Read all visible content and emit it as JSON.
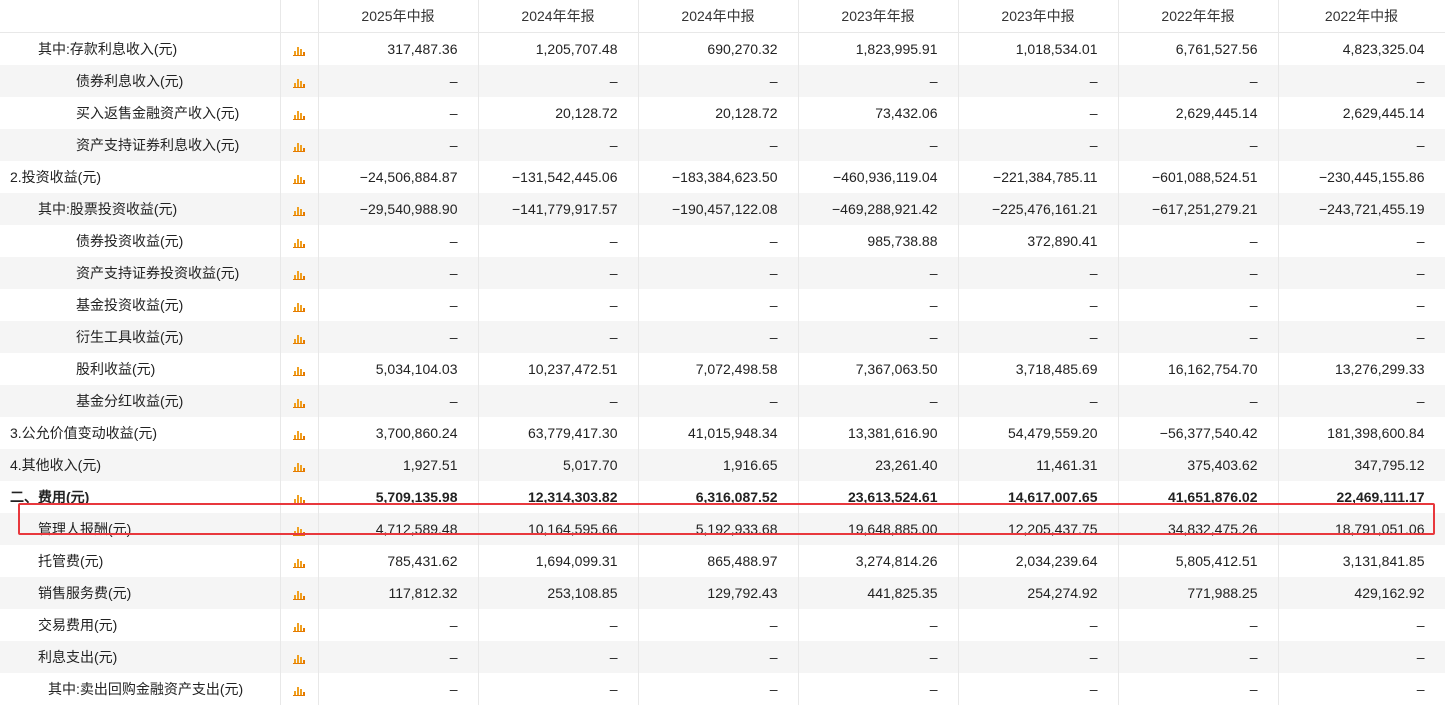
{
  "headers": [
    "2025年中报",
    "2024年年报",
    "2024年中报",
    "2023年年报",
    "2023年中报",
    "2022年年报",
    "2022年中报"
  ],
  "rows": [
    {
      "label": "其中:存款利息收入(元)",
      "values": [
        "317,487.36",
        "1,205,707.48",
        "690,270.32",
        "1,823,995.91",
        "1,018,534.01",
        "6,761,527.56",
        "4,823,325.04"
      ]
    },
    {
      "label": "债券利息收入(元)",
      "values": [
        "–",
        "–",
        "–",
        "–",
        "–",
        "–",
        "–"
      ]
    },
    {
      "label": "买入返售金融资产收入(元)",
      "values": [
        "–",
        "20,128.72",
        "20,128.72",
        "73,432.06",
        "–",
        "2,629,445.14",
        "2,629,445.14"
      ]
    },
    {
      "label": "资产支持证券利息收入(元)",
      "values": [
        "–",
        "–",
        "–",
        "–",
        "–",
        "–",
        "–"
      ]
    },
    {
      "label": "2.投资收益(元)",
      "values": [
        "−24,506,884.87",
        "−131,542,445.06",
        "−183,384,623.50",
        "−460,936,119.04",
        "−221,384,785.11",
        "−601,088,524.51",
        "−230,445,155.86"
      ]
    },
    {
      "label": "其中:股票投资收益(元)",
      "values": [
        "−29,540,988.90",
        "−141,779,917.57",
        "−190,457,122.08",
        "−469,288,921.42",
        "−225,476,161.21",
        "−617,251,279.21",
        "−243,721,455.19"
      ]
    },
    {
      "label": "债券投资收益(元)",
      "values": [
        "–",
        "–",
        "–",
        "985,738.88",
        "372,890.41",
        "–",
        "–"
      ]
    },
    {
      "label": "资产支持证券投资收益(元)",
      "values": [
        "–",
        "–",
        "–",
        "–",
        "–",
        "–",
        "–"
      ]
    },
    {
      "label": "基金投资收益(元)",
      "values": [
        "–",
        "–",
        "–",
        "–",
        "–",
        "–",
        "–"
      ]
    },
    {
      "label": "衍生工具收益(元)",
      "values": [
        "–",
        "–",
        "–",
        "–",
        "–",
        "–",
        "–"
      ]
    },
    {
      "label": "股利收益(元)",
      "values": [
        "5,034,104.03",
        "10,237,472.51",
        "7,072,498.58",
        "7,367,063.50",
        "3,718,485.69",
        "16,162,754.70",
        "13,276,299.33"
      ]
    },
    {
      "label": "基金分红收益(元)",
      "values": [
        "–",
        "–",
        "–",
        "–",
        "–",
        "–",
        "–"
      ]
    },
    {
      "label": "3.公允价值变动收益(元)",
      "values": [
        "3,700,860.24",
        "63,779,417.30",
        "41,015,948.34",
        "13,381,616.90",
        "54,479,559.20",
        "−56,377,540.42",
        "181,398,600.84"
      ]
    },
    {
      "label": "4.其他收入(元)",
      "values": [
        "1,927.51",
        "5,017.70",
        "1,916.65",
        "23,261.40",
        "11,461.31",
        "375,403.62",
        "347,795.12"
      ]
    },
    {
      "label": "二、费用(元)",
      "values": [
        "5,709,135.98",
        "12,314,303.82",
        "6,316,087.52",
        "23,613,524.61",
        "14,617,007.65",
        "41,651,876.02",
        "22,469,111.17"
      ]
    },
    {
      "label": "管理人报酬(元)",
      "values": [
        "4,712,589.48",
        "10,164,595.66",
        "5,192,933.68",
        "19,648,885.00",
        "12,205,437.75",
        "34,832,475.26",
        "18,791,051.06"
      ]
    },
    {
      "label": "托管费(元)",
      "values": [
        "785,431.62",
        "1,694,099.31",
        "865,488.97",
        "3,274,814.26",
        "2,034,239.64",
        "5,805,412.51",
        "3,131,841.85"
      ]
    },
    {
      "label": "销售服务费(元)",
      "values": [
        "117,812.32",
        "253,108.85",
        "129,792.43",
        "441,825.35",
        "254,274.92",
        "771,988.25",
        "429,162.92"
      ]
    },
    {
      "label": "交易费用(元)",
      "values": [
        "–",
        "–",
        "–",
        "–",
        "–",
        "–",
        "–"
      ]
    },
    {
      "label": "利息支出(元)",
      "values": [
        "–",
        "–",
        "–",
        "–",
        "–",
        "–",
        "–"
      ]
    },
    {
      "label": "其中:卖出回购金融资产支出(元)",
      "values": [
        "–",
        "–",
        "–",
        "–",
        "–",
        "–",
        "–"
      ]
    }
  ],
  "icon_name": "bar-chart-icon",
  "highlight_color": "#e8383d"
}
